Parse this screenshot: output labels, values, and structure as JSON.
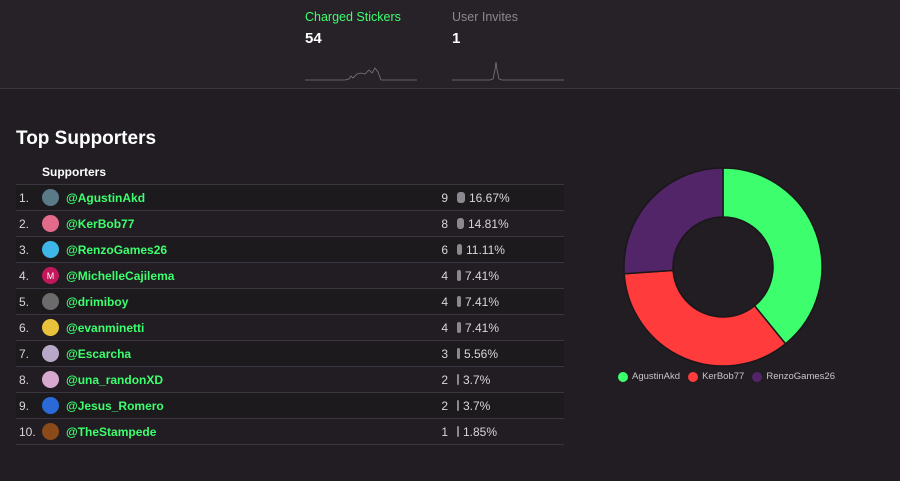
{
  "stats": [
    {
      "label": "Charged Stickers",
      "value": "54",
      "color": "#3dff6e"
    },
    {
      "label": "User Invites",
      "value": "1",
      "color": "#8c8890"
    }
  ],
  "section_title": "Top Supporters",
  "table": {
    "header": "Supporters",
    "rows": [
      {
        "rank": "1.",
        "user": "@AgustinAkd",
        "count": "9",
        "percent": "16.67%",
        "fraction": 0.1667,
        "avatar_icon": "avatar-bot-icon",
        "avatar_color": "#5a7a88"
      },
      {
        "rank": "2.",
        "user": "@KerBob77",
        "count": "8",
        "percent": "14.81%",
        "fraction": 0.1481,
        "avatar_icon": "avatar-character-icon",
        "avatar_color": "#e26a8a"
      },
      {
        "rank": "3.",
        "user": "@RenzoGames26",
        "count": "6",
        "percent": "11.11%",
        "fraction": 0.1111,
        "avatar_icon": "avatar-sunglasses-icon",
        "avatar_color": "#3fb6e8"
      },
      {
        "rank": "4.",
        "user": "@MichelleCajilema",
        "count": "4",
        "percent": "7.41%",
        "fraction": 0.0741,
        "avatar_icon": "avatar-initial-icon",
        "avatar_letter": "M",
        "avatar_color": "#c2185b"
      },
      {
        "rank": "5.",
        "user": "@drimiboy",
        "count": "4",
        "percent": "7.41%",
        "fraction": 0.0741,
        "avatar_icon": "avatar-headphones-icon",
        "avatar_color": "#6b6b6b"
      },
      {
        "rank": "6.",
        "user": "@evanminetti",
        "count": "4",
        "percent": "7.41%",
        "fraction": 0.0741,
        "avatar_icon": "avatar-yellow-icon",
        "avatar_color": "#e8c23a"
      },
      {
        "rank": "7.",
        "user": "@Escarcha",
        "count": "3",
        "percent": "5.56%",
        "fraction": 0.0556,
        "avatar_icon": "avatar-anime-icon",
        "avatar_color": "#b8a8c8"
      },
      {
        "rank": "8.",
        "user": "@una_randonXD",
        "count": "2",
        "percent": "3.7%",
        "fraction": 0.037,
        "avatar_icon": "avatar-anime-pink-icon",
        "avatar_color": "#d8a8d0"
      },
      {
        "rank": "9.",
        "user": "@Jesus_Romero",
        "count": "2",
        "percent": "3.7%",
        "fraction": 0.037,
        "avatar_icon": "avatar-blue-icon",
        "avatar_color": "#2a6ad8"
      },
      {
        "rank": "10.",
        "user": "@TheStampede",
        "count": "1",
        "percent": "1.85%",
        "fraction": 0.0185,
        "avatar_icon": "avatar-dark-icon",
        "avatar_color": "#8a4a1a"
      }
    ]
  },
  "chart_data": {
    "type": "pie",
    "variant": "donut",
    "categories": [
      "AgustinAkd",
      "KerBob77",
      "RenzoGames26"
    ],
    "values": [
      9,
      8,
      6
    ],
    "colors": [
      "#3dff6e",
      "#ff3b3b",
      "#522568"
    ],
    "legend_position": "bottom"
  }
}
